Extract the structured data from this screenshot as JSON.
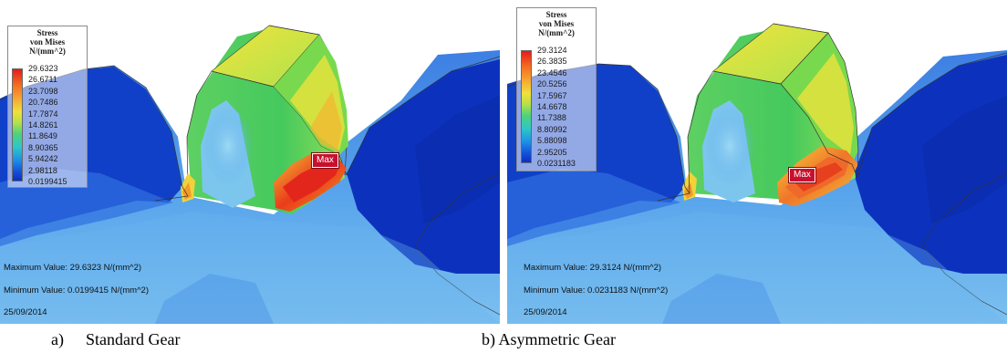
{
  "panels": [
    {
      "caption_marker": "a)",
      "caption_text": "Standard Gear",
      "legend": {
        "title_lines": [
          "Stress",
          "von Mises",
          "N/(mm^2)"
        ],
        "values": [
          "29.6323",
          "26.6711",
          "23.7098",
          "20.7486",
          "17.7874",
          "14.8261",
          "11.8649",
          "8.90365",
          "5.94242",
          "2.98118",
          "0.0199415"
        ]
      },
      "max_label": "Max",
      "max_value": "Maximum Value: 29.6323 N/(mm^2)",
      "min_value": "Minimum Value: 0.0199415 N/(mm^2)",
      "date": "25/09/2014"
    },
    {
      "caption_marker": "b)",
      "caption_text": "Asymmetric Gear",
      "legend": {
        "title_lines": [
          "Stress",
          "von Mises",
          "N/(mm^2)"
        ],
        "values": [
          "29.3124",
          "26.3835",
          "23.4546",
          "20.5256",
          "17.5967",
          "14.6678",
          "11.7388",
          "8.80992",
          "5.88098",
          "2.95205",
          "0.0231183"
        ]
      },
      "max_label": "Max",
      "max_value": "Maximum Value: 29.3124 N/(mm^2)",
      "min_value": "Minimum Value: 0.0231183 N/(mm^2)",
      "date": "25/09/2014"
    }
  ],
  "colors": {
    "deep_blue": "#0a2fb8",
    "mid_blue": "#1f62dd",
    "light_blue": "#5aa8ee",
    "cyan": "#8fd8ee",
    "green": "#3fd06a",
    "yellow": "#e9e23c",
    "orange": "#f39a2a",
    "red": "#e3261c"
  }
}
